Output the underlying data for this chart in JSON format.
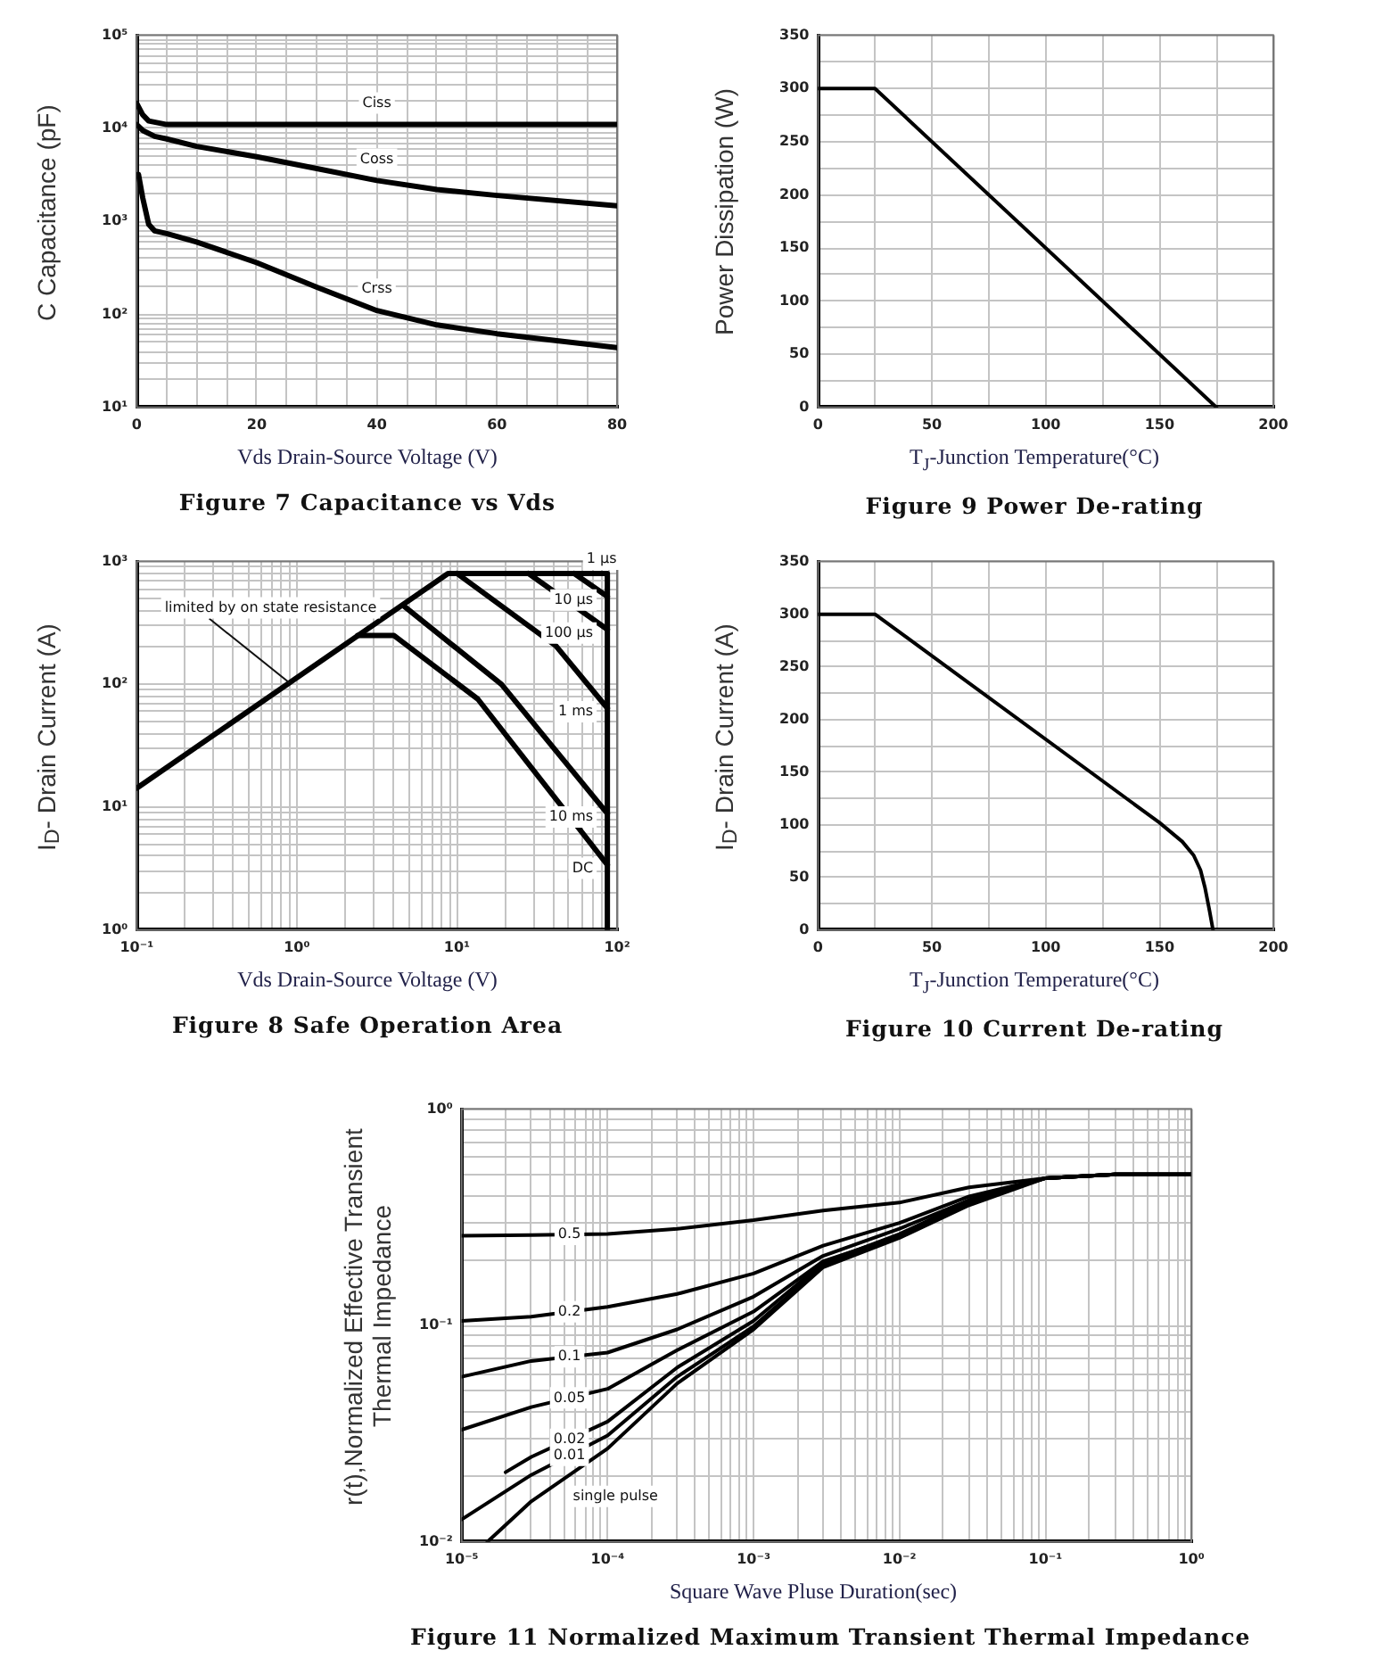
{
  "chart_data": [
    {
      "type": "line",
      "title": "Figure 7 Capacitance vs Vds",
      "xlabel": "Vds Drain-Source Voltage (V)",
      "ylabel": "C Capacitance (pF)",
      "log": "y",
      "grid": true,
      "marker": "none",
      "line_style": "solid",
      "xlim": [
        0,
        80
      ],
      "ylim": [
        10,
        100000
      ],
      "xticks": [
        0,
        {
          "value": 5,
          "label": null
        },
        {
          "value": 10,
          "label": null
        },
        {
          "value": 15,
          "label": null
        },
        20,
        {
          "value": 25,
          "label": null
        },
        {
          "value": 30,
          "label": null
        },
        {
          "value": 35,
          "label": null
        },
        40,
        {
          "value": 45,
          "label": null
        },
        {
          "value": 50,
          "label": null
        },
        {
          "value": 55,
          "label": null
        },
        60,
        {
          "value": 65,
          "label": null
        },
        {
          "value": 70,
          "label": null
        },
        {
          "value": 75,
          "label": null
        },
        80
      ],
      "yticks": [
        {
          "value": 10,
          "label": "10¹"
        },
        {
          "value": 20,
          "label": null
        },
        {
          "value": 30,
          "label": null
        },
        {
          "value": 40,
          "label": null
        },
        {
          "value": 50,
          "label": null
        },
        {
          "value": 60,
          "label": null
        },
        {
          "value": 70,
          "label": null
        },
        {
          "value": 80,
          "label": null
        },
        {
          "value": 90,
          "label": null
        },
        {
          "value": 100,
          "label": "10²"
        },
        {
          "value": 200,
          "label": null
        },
        {
          "value": 300,
          "label": null
        },
        {
          "value": 400,
          "label": null
        },
        {
          "value": 500,
          "label": null
        },
        {
          "value": 600,
          "label": null
        },
        {
          "value": 700,
          "label": null
        },
        {
          "value": 800,
          "label": null
        },
        {
          "value": 900,
          "label": null
        },
        {
          "value": 1000,
          "label": "10³"
        },
        {
          "value": 2000,
          "label": null
        },
        {
          "value": 3000,
          "label": null
        },
        {
          "value": 4000,
          "label": null
        },
        {
          "value": 5000,
          "label": null
        },
        {
          "value": 6000,
          "label": null
        },
        {
          "value": 7000,
          "label": null
        },
        {
          "value": 8000,
          "label": null
        },
        {
          "value": 9000,
          "label": null
        },
        {
          "value": 10000,
          "label": "10⁴"
        },
        {
          "value": 20000,
          "label": null
        },
        {
          "value": 30000,
          "label": null
        },
        {
          "value": 40000,
          "label": null
        },
        {
          "value": 50000,
          "label": null
        },
        {
          "value": 60000,
          "label": null
        },
        {
          "value": 70000,
          "label": null
        },
        {
          "value": 80000,
          "label": null
        },
        {
          "value": 90000,
          "label": null
        },
        {
          "value": 100000,
          "label": "10⁵"
        }
      ],
      "series": [
        {
          "name": "Ciss",
          "color": "#000000",
          "x": [
            0,
            1,
            2,
            5,
            40,
            80
          ],
          "values": [
            18600,
            14000,
            12000,
            11000,
            11000,
            11000
          ]
        },
        {
          "name": "Coss",
          "color": "#000000",
          "x": [
            0,
            1,
            3,
            5,
            10,
            20,
            30,
            40,
            50,
            60,
            80
          ],
          "values": [
            11000,
            9500,
            8200,
            7700,
            6400,
            4950,
            3700,
            2750,
            2200,
            1900,
            1470
          ]
        },
        {
          "name": "Crss",
          "color": "#000000",
          "x": [
            0.3,
            1,
            2,
            3,
            5,
            10,
            20,
            30,
            40,
            50,
            60,
            80
          ],
          "values": [
            3200,
            1800,
            930,
            790,
            740,
            600,
            360,
            196,
            110,
            77,
            62,
            44
          ]
        }
      ]
    },
    {
      "type": "line",
      "title": "Figure 9 Power De-rating",
      "xlabel": "T$_{J}$-Junction Temperature(°C)",
      "ylabel": "Power Dissipation (W)",
      "grid": true,
      "marker": "none",
      "line_style": "solid",
      "xlim": [
        0,
        200
      ],
      "ylim": [
        0,
        350
      ],
      "xticks": [
        0,
        {
          "value": 25,
          "label": null
        },
        50,
        {
          "value": 75,
          "label": null
        },
        100,
        {
          "value": 125,
          "label": null
        },
        150,
        {
          "value": 175,
          "label": null
        },
        200
      ],
      "yticks": [
        0,
        {
          "value": 25,
          "label": null
        },
        50,
        {
          "value": 75,
          "label": null
        },
        100,
        {
          "value": 125,
          "label": null
        },
        150,
        {
          "value": 175,
          "label": null
        },
        200,
        {
          "value": 225,
          "label": null
        },
        250,
        {
          "value": 275,
          "label": null
        },
        300,
        {
          "value": 325,
          "label": null
        },
        350
      ],
      "series": [
        {
          "color": "#000000",
          "x": [
            0,
            25,
            175
          ],
          "values": [
            300,
            300,
            0
          ]
        }
      ]
    },
    {
      "type": "line",
      "title": "Figure 8 Safe Operation Area",
      "xlabel": "Vds Drain-Source Voltage (V)",
      "ylabel": "I$_{D}$- Drain Current (A)",
      "log": "xy",
      "grid": true,
      "marker": "none",
      "line_style": "solid",
      "xlim": [
        0.1,
        100
      ],
      "ylim": [
        1,
        1000
      ],
      "xticks": [
        {
          "value": 0.1,
          "label": "10⁻¹"
        },
        {
          "value": 0.2,
          "label": null
        },
        {
          "value": 0.3,
          "label": null
        },
        {
          "value": 0.4,
          "label": null
        },
        {
          "value": 0.5,
          "label": null
        },
        {
          "value": 0.6,
          "label": null
        },
        {
          "value": 0.7,
          "label": null
        },
        {
          "value": 0.8,
          "label": null
        },
        {
          "value": 0.9,
          "label": null
        },
        {
          "value": 1,
          "label": "10⁰"
        },
        {
          "value": 2,
          "label": null
        },
        {
          "value": 3,
          "label": null
        },
        {
          "value": 4,
          "label": null
        },
        {
          "value": 5,
          "label": null
        },
        {
          "value": 6,
          "label": null
        },
        {
          "value": 7,
          "label": null
        },
        {
          "value": 8,
          "label": null
        },
        {
          "value": 9,
          "label": null
        },
        {
          "value": 10,
          "label": "10¹"
        },
        {
          "value": 20,
          "label": null
        },
        {
          "value": 30,
          "label": null
        },
        {
          "value": 40,
          "label": null
        },
        {
          "value": 50,
          "label": null
        },
        {
          "value": 60,
          "label": null
        },
        {
          "value": 70,
          "label": null
        },
        {
          "value": 80,
          "label": null
        },
        {
          "value": 90,
          "label": null
        },
        {
          "value": 100,
          "label": "10²"
        }
      ],
      "yticks": [
        {
          "value": 1,
          "label": "10⁰"
        },
        {
          "value": 2,
          "label": null
        },
        {
          "value": 3,
          "label": null
        },
        {
          "value": 4,
          "label": null
        },
        {
          "value": 5,
          "label": null
        },
        {
          "value": 6,
          "label": null
        },
        {
          "value": 7,
          "label": null
        },
        {
          "value": 8,
          "label": null
        },
        {
          "value": 9,
          "label": null
        },
        {
          "value": 10,
          "label": "10¹"
        },
        {
          "value": 20,
          "label": null
        },
        {
          "value": 30,
          "label": null
        },
        {
          "value": 40,
          "label": null
        },
        {
          "value": 50,
          "label": null
        },
        {
          "value": 60,
          "label": null
        },
        {
          "value": 70,
          "label": null
        },
        {
          "value": 80,
          "label": null
        },
        {
          "value": 90,
          "label": null
        },
        {
          "value": 100,
          "label": "10²"
        },
        {
          "value": 200,
          "label": null
        },
        {
          "value": 300,
          "label": null
        },
        {
          "value": 400,
          "label": null
        },
        {
          "value": 500,
          "label": null
        },
        {
          "value": 600,
          "label": null
        },
        {
          "value": 700,
          "label": null
        },
        {
          "value": 800,
          "label": null
        },
        {
          "value": 900,
          "label": null
        },
        {
          "value": 1000,
          "label": "10³"
        }
      ],
      "series": [
        {
          "color": "#000000",
          "x": [
            0.1,
            8.8,
            87,
            87
          ],
          "values": [
            14.3,
            800,
            800,
            1
          ]
        },
        {
          "name": "10 µs",
          "color": "#000000",
          "x": [
            54,
            87
          ],
          "values": [
            800,
            520
          ]
        },
        {
          "name": "100 µs",
          "color": "#000000",
          "x": [
            28,
            87
          ],
          "values": [
            800,
            280
          ]
        },
        {
          "name": "1 ms",
          "color": "#000000",
          "x": [
            10,
            41.5,
            87
          ],
          "values": [
            800,
            206,
            64
          ]
        },
        {
          "name": "10 ms",
          "color": "#000000",
          "x": [
            4.6,
            19,
            87
          ],
          "values": [
            440,
            100,
            8.9
          ]
        },
        {
          "name": "DC",
          "color": "#000000",
          "x": [
            2.4,
            4.05,
            13.5,
            87
          ],
          "values": [
            250,
            250,
            76,
            3.4
          ]
        }
      ],
      "annotations": [
        {
          "text": "limited by on state resistance",
          "x": 0.9,
          "y": 103
        },
        {
          "text": "1 µs",
          "x": 80,
          "y": 800
        }
      ]
    },
    {
      "type": "line",
      "title": "Figure 10 Current De-rating",
      "xlabel": "T$_{J}$-Junction Temperature(°C)",
      "ylabel": "I$_{D}$- Drain Current (A)",
      "grid": true,
      "marker": "none",
      "line_style": "solid",
      "xlim": [
        0,
        200
      ],
      "ylim": [
        0,
        350
      ],
      "xticks": [
        0,
        {
          "value": 25,
          "label": null
        },
        50,
        {
          "value": 75,
          "label": null
        },
        100,
        {
          "value": 125,
          "label": null
        },
        150,
        {
          "value": 175,
          "label": null
        },
        200
      ],
      "yticks": [
        0,
        {
          "value": 25,
          "label": null
        },
        50,
        {
          "value": 75,
          "label": null
        },
        100,
        {
          "value": 125,
          "label": null
        },
        150,
        {
          "value": 175,
          "label": null
        },
        200,
        {
          "value": 225,
          "label": null
        },
        250,
        {
          "value": 275,
          "label": null
        },
        300,
        {
          "value": 325,
          "label": null
        },
        350
      ],
      "series": [
        {
          "color": "#000000",
          "x": [
            0,
            25,
            150,
            160,
            165,
            168,
            170,
            172,
            173.5
          ],
          "values": [
            300,
            300,
            102,
            84,
            71,
            57,
            40,
            18,
            0
          ]
        }
      ]
    },
    {
      "type": "line",
      "title": "Figure 11 Normalized Maximum Transient Thermal Impedance",
      "xlabel": "Square Wave Pluse Duration(sec)",
      "ylabel": "r(t),Normalized Effective Transient Thermal Impedance",
      "log": "xy",
      "grid": true,
      "marker": "none",
      "line_style": "solid",
      "xlim": [
        1e-05,
        1
      ],
      "ylim": [
        0.01,
        1
      ],
      "xticks": [
        {
          "value": 1e-05,
          "label": "10⁻⁵"
        },
        {
          "value": 2e-05,
          "label": null
        },
        {
          "value": 3e-05,
          "label": null
        },
        {
          "value": 4e-05,
          "label": null
        },
        {
          "value": 5e-05,
          "label": null
        },
        {
          "value": 6e-05,
          "label": null
        },
        {
          "value": 7e-05,
          "label": null
        },
        {
          "value": 8e-05,
          "label": null
        },
        {
          "value": 9e-05,
          "label": null
        },
        {
          "value": 0.0001,
          "label": "10⁻⁴"
        },
        {
          "value": 0.0002,
          "label": null
        },
        {
          "value": 0.0003,
          "label": null
        },
        {
          "value": 0.0004,
          "label": null
        },
        {
          "value": 0.0005,
          "label": null
        },
        {
          "value": 0.0006,
          "label": null
        },
        {
          "value": 0.0007,
          "label": null
        },
        {
          "value": 0.0008,
          "label": null
        },
        {
          "value": 0.0009,
          "label": null
        },
        {
          "value": 0.001,
          "label": "10⁻³"
        },
        {
          "value": 0.002,
          "label": null
        },
        {
          "value": 0.003,
          "label": null
        },
        {
          "value": 0.004,
          "label": null
        },
        {
          "value": 0.005,
          "label": null
        },
        {
          "value": 0.006,
          "label": null
        },
        {
          "value": 0.007,
          "label": null
        },
        {
          "value": 0.008,
          "label": null
        },
        {
          "value": 0.009,
          "label": null
        },
        {
          "value": 0.01,
          "label": "10⁻²"
        },
        {
          "value": 0.02,
          "label": null
        },
        {
          "value": 0.03,
          "label": null
        },
        {
          "value": 0.04,
          "label": null
        },
        {
          "value": 0.05,
          "label": null
        },
        {
          "value": 0.06,
          "label": null
        },
        {
          "value": 0.07,
          "label": null
        },
        {
          "value": 0.08,
          "label": null
        },
        {
          "value": 0.09,
          "label": null
        },
        {
          "value": 0.1,
          "label": "10⁻¹"
        },
        {
          "value": 0.2,
          "label": null
        },
        {
          "value": 0.3,
          "label": null
        },
        {
          "value": 0.4,
          "label": null
        },
        {
          "value": 0.5,
          "label": null
        },
        {
          "value": 0.6,
          "label": null
        },
        {
          "value": 0.7,
          "label": null
        },
        {
          "value": 0.8,
          "label": null
        },
        {
          "value": 0.9,
          "label": null
        },
        {
          "value": 1,
          "label": "10⁰"
        }
      ],
      "yticks": [
        {
          "value": 0.01,
          "label": "10⁻²"
        },
        {
          "value": 0.02,
          "label": null
        },
        {
          "value": 0.03,
          "label": null
        },
        {
          "value": 0.04,
          "label": null
        },
        {
          "value": 0.05,
          "label": null
        },
        {
          "value": 0.06,
          "label": null
        },
        {
          "value": 0.07,
          "label": null
        },
        {
          "value": 0.08,
          "label": null
        },
        {
          "value": 0.09,
          "label": null
        },
        {
          "value": 0.1,
          "label": "10⁻¹"
        },
        {
          "value": 0.2,
          "label": null
        },
        {
          "value": 0.3,
          "label": null
        },
        {
          "value": 0.4,
          "label": null
        },
        {
          "value": 0.5,
          "label": null
        },
        {
          "value": 0.6,
          "label": null
        },
        {
          "value": 0.7,
          "label": null
        },
        {
          "value": 0.8,
          "label": null
        },
        {
          "value": 0.9,
          "label": null
        },
        {
          "value": 1,
          "label": "10⁰"
        }
      ],
      "x": [
        1e-05,
        3e-05,
        0.0001,
        0.0003,
        0.001,
        0.003,
        0.01,
        0.03,
        0.1,
        0.3,
        1
      ],
      "series": [
        {
          "name": "0.5",
          "color": "#000000",
          "values": [
            0.26,
            0.262,
            0.265,
            0.28,
            0.307,
            0.34,
            0.37,
            0.435,
            0.48,
            0.5,
            0.5
          ]
        },
        {
          "name": "0.2",
          "color": "#000000",
          "values": [
            0.105,
            0.11,
            0.122,
            0.14,
            0.174,
            0.234,
            0.298,
            0.395,
            0.48,
            0.5,
            0.5
          ]
        },
        {
          "name": "0.1",
          "color": "#000000",
          "values": [
            0.058,
            0.0686,
            0.075,
            0.096,
            0.136,
            0.21,
            0.28,
            0.38,
            0.48,
            0.5,
            0.5
          ]
        },
        {
          "name": "0.05",
          "color": "#000000",
          "values": [
            0.033,
            0.042,
            0.051,
            0.077,
            0.116,
            0.198,
            0.26,
            0.38,
            0.48,
            0.5,
            0.5
          ]
        },
        {
          "name": "0.02",
          "color": "#000000",
          "x": [
            2e-05,
            3e-05,
            0.0001,
            0.0003,
            0.001,
            0.003,
            0.01,
            0.03,
            0.1,
            0.3,
            1
          ],
          "values": [
            0.021,
            0.0247,
            0.036,
            0.064,
            0.105,
            0.195,
            0.265,
            0.375,
            0.48,
            0.5,
            0.5
          ]
        },
        {
          "name": "0.01",
          "color": "#000000",
          "values": [
            0.0127,
            0.0204,
            0.031,
            0.058,
            0.099,
            0.19,
            0.26,
            0.37,
            0.48,
            0.5,
            0.5
          ]
        },
        {
          "name": "single pulse",
          "color": "#000000",
          "x": [
            1.5e-05,
            3e-05,
            0.0001,
            0.0003,
            0.001,
            0.003,
            0.01,
            0.03,
            0.1,
            0.3,
            1
          ],
          "values": [
            0.01,
            0.0154,
            0.027,
            0.054,
            0.096,
            0.186,
            0.254,
            0.36,
            0.48,
            0.5,
            0.5
          ]
        }
      ]
    }
  ]
}
